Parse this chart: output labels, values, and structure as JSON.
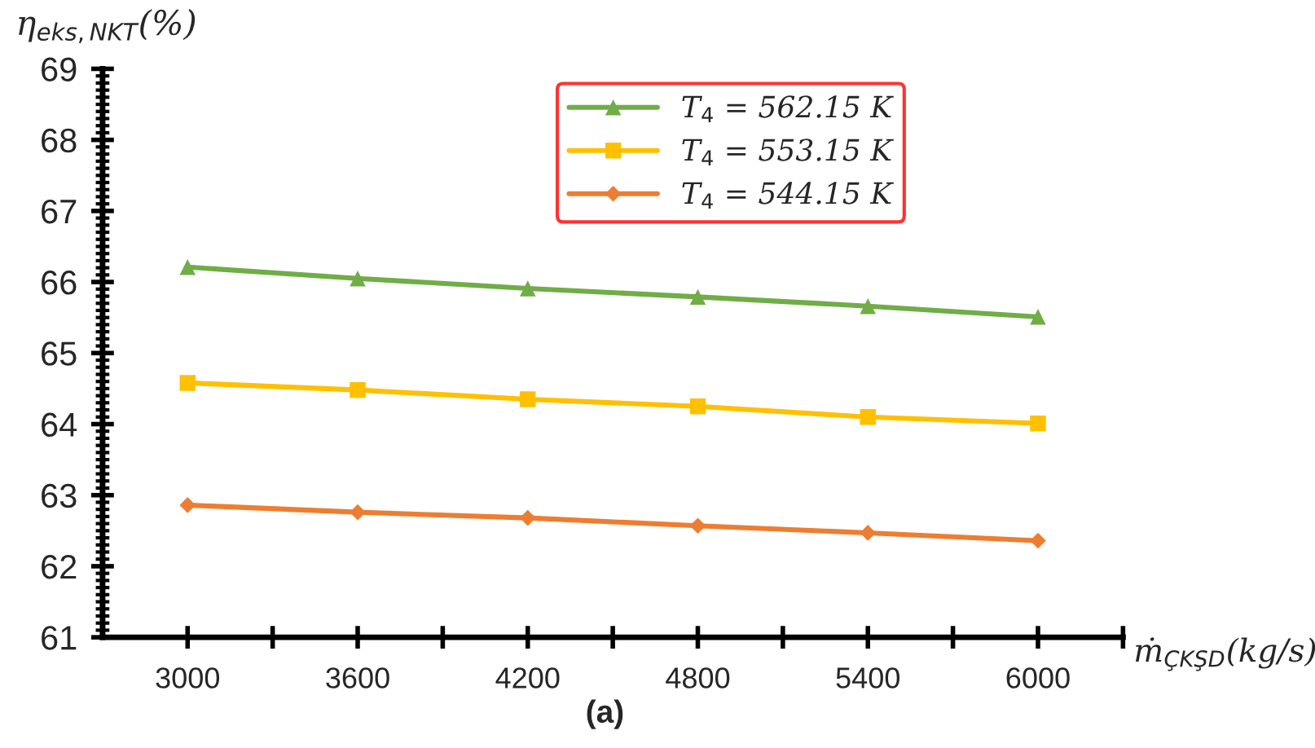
{
  "chart_data": {
    "type": "line",
    "x": [
      3000,
      3600,
      4200,
      4800,
      5400,
      6000
    ],
    "series": [
      {
        "name": "T$_{4}$ = 562.15 K",
        "color": "#70ad47",
        "marker": "triangle",
        "values": [
          66.21,
          66.05,
          65.91,
          65.79,
          65.66,
          65.51
        ]
      },
      {
        "name": "T$_{4}$ = 553.15 K",
        "color": "#ffc000",
        "marker": "square",
        "values": [
          64.58,
          64.48,
          64.35,
          64.25,
          64.1,
          64.01
        ]
      },
      {
        "name": "T$_{4}$ = 544.15 K",
        "color": "#ed7d31",
        "marker": "diamond",
        "values": [
          62.86,
          62.76,
          62.68,
          62.57,
          62.47,
          62.36
        ]
      }
    ],
    "xlim": [
      2700,
      6300
    ],
    "xticks": [
      3000,
      {
        "value": 3300,
        "label": null
      },
      3600,
      {
        "value": 3900,
        "label": null
      },
      4200,
      {
        "value": 4500,
        "label": null
      },
      4800,
      {
        "value": 5100,
        "label": null
      },
      5400,
      {
        "value": 5700,
        "label": null
      },
      6000,
      {
        "value": 6300,
        "label": null
      }
    ],
    "ylim": [
      61,
      69
    ],
    "yticks": [
      61,
      62,
      63,
      64,
      65,
      66,
      67,
      68,
      69
    ],
    "ylabel": "η$_{eks,NKT}$(%)",
    "xlabel": "ṁ$_{ÇKŞD}$(kg/s)",
    "annotations": [
      "(a)"
    ],
    "legend": "top right",
    "grid": false,
    "line_style": "solid"
  }
}
